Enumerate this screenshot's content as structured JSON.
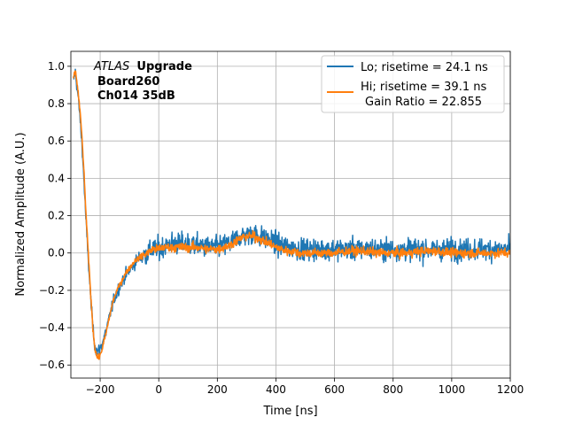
{
  "chart_data": {
    "type": "line",
    "xlabel": "Time [ns]",
    "ylabel": "Normalized Amplitude (A.U.)",
    "xlim": [
      -300,
      1200
    ],
    "ylim": [
      -0.67,
      1.08
    ],
    "grid": true,
    "x_ticks": [
      -200,
      0,
      200,
      400,
      600,
      800,
      1000,
      1200
    ],
    "x_tick_labels": [
      "−200",
      "0",
      "200",
      "400",
      "600",
      "800",
      "1000",
      "1200"
    ],
    "y_ticks": [
      -0.6,
      -0.4,
      -0.2,
      0.0,
      0.2,
      0.4,
      0.6,
      0.8,
      1.0
    ],
    "y_tick_labels": [
      "−0.6",
      "−0.4",
      "−0.2",
      "0.0",
      "0.2",
      "0.4",
      "0.6",
      "0.8",
      "1.0"
    ],
    "annotation": {
      "line1_italic": "ATLAS",
      "line1_bold": "Upgrade",
      "line2": "Board260",
      "line3": "Ch014 35dB"
    },
    "legend_position": "upper-right",
    "legend": {
      "lo_label": "Lo; risetime = 24.1 ns",
      "hi_label": "Hi; risetime = 39.1 ns",
      "gain_label": "Gain Ratio = 22.855"
    },
    "series": [
      {
        "name": "Lo",
        "color": "#1f77b4",
        "noise": 0.075,
        "x": [
          -292,
          -285,
          -278,
          -270,
          -262,
          -255,
          -248,
          -240,
          -232,
          -225,
          -218,
          -210,
          -203,
          -196,
          -188,
          -180,
          -172,
          -165,
          -158,
          -150,
          -140,
          -130,
          -120,
          -110,
          -100,
          -90,
          -80,
          -70,
          -60,
          -50,
          -40,
          -30,
          -20,
          -10,
          0,
          20,
          40,
          60,
          80,
          100,
          120,
          140,
          160,
          180,
          200,
          220,
          240,
          260,
          280,
          300,
          320,
          340,
          360,
          380,
          400,
          420,
          440,
          460,
          480,
          500,
          550,
          600,
          650,
          700,
          750,
          800,
          850,
          900,
          950,
          1000,
          1050,
          1100,
          1150,
          1200
        ],
        "y": [
          0.92,
          0.97,
          0.88,
          0.75,
          0.58,
          0.38,
          0.16,
          -0.05,
          -0.25,
          -0.4,
          -0.5,
          -0.53,
          -0.52,
          -0.5,
          -0.46,
          -0.42,
          -0.37,
          -0.32,
          -0.28,
          -0.24,
          -0.2,
          -0.17,
          -0.14,
          -0.11,
          -0.09,
          -0.07,
          -0.05,
          -0.03,
          -0.02,
          -0.01,
          0.0,
          0.01,
          0.02,
          0.02,
          0.02,
          0.04,
          0.05,
          0.05,
          0.05,
          0.05,
          0.04,
          0.04,
          0.03,
          0.03,
          0.03,
          0.04,
          0.05,
          0.07,
          0.09,
          0.1,
          0.1,
          0.09,
          0.08,
          0.07,
          0.05,
          0.04,
          0.03,
          0.03,
          0.02,
          0.02,
          0.02,
          0.02,
          0.02,
          0.02,
          0.02,
          0.02,
          0.02,
          0.02,
          0.02,
          0.02,
          0.02,
          0.02,
          0.02,
          0.02
        ]
      },
      {
        "name": "Hi",
        "color": "#ff7f0e",
        "noise": 0.03,
        "x": [
          -292,
          -285,
          -278,
          -270,
          -262,
          -255,
          -248,
          -240,
          -232,
          -225,
          -218,
          -210,
          -203,
          -196,
          -188,
          -180,
          -172,
          -165,
          -158,
          -150,
          -140,
          -130,
          -120,
          -110,
          -100,
          -90,
          -80,
          -70,
          -60,
          -50,
          -40,
          -30,
          -20,
          -10,
          0,
          20,
          40,
          60,
          80,
          100,
          120,
          140,
          160,
          180,
          200,
          220,
          240,
          260,
          280,
          300,
          320,
          340,
          360,
          380,
          400,
          420,
          440,
          460,
          480,
          500,
          550,
          600,
          650,
          700,
          750,
          800,
          850,
          900,
          950,
          1000,
          1050,
          1100,
          1150,
          1200
        ],
        "y": [
          0.93,
          0.98,
          0.9,
          0.78,
          0.62,
          0.42,
          0.2,
          -0.02,
          -0.23,
          -0.4,
          -0.51,
          -0.56,
          -0.56,
          -0.53,
          -0.48,
          -0.43,
          -0.37,
          -0.32,
          -0.27,
          -0.23,
          -0.19,
          -0.16,
          -0.13,
          -0.1,
          -0.08,
          -0.06,
          -0.04,
          -0.03,
          -0.02,
          -0.01,
          0.0,
          0.01,
          0.02,
          0.02,
          0.02,
          0.03,
          0.03,
          0.03,
          0.03,
          0.03,
          0.03,
          0.03,
          0.02,
          0.02,
          0.02,
          0.03,
          0.04,
          0.06,
          0.08,
          0.09,
          0.09,
          0.08,
          0.06,
          0.05,
          0.03,
          0.02,
          0.01,
          0.01,
          0.0,
          0.0,
          0.0,
          0.0,
          0.01,
          0.01,
          0.0,
          0.0,
          0.0,
          0.01,
          0.01,
          0.0,
          0.0,
          0.0,
          0.0,
          0.0
        ]
      }
    ]
  }
}
